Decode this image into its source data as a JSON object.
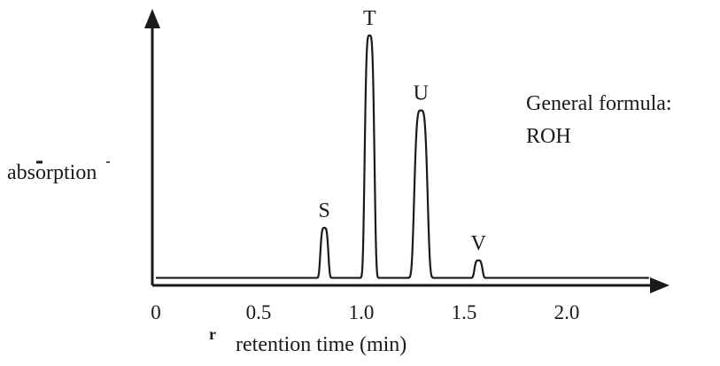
{
  "chart_data": {
    "type": "line",
    "title": "",
    "xlabel": "retention time (min)",
    "ylabel": "absorption",
    "xlim": [
      0,
      2.4
    ],
    "xticks": [
      {
        "value": 0,
        "label": "0"
      },
      {
        "value": 0.5,
        "label": "0.5"
      },
      {
        "value": 1.0,
        "label": "1.0"
      },
      {
        "value": 1.5,
        "label": "1.5"
      },
      {
        "value": 2.0,
        "label": "2.0"
      }
    ],
    "y_axis_ticks": false,
    "grid": false,
    "legend": "none",
    "baseline_absorption": 0.03,
    "peaks": [
      {
        "label": "S",
        "retention_time": 0.82,
        "absorption": 0.23,
        "width": 0.018
      },
      {
        "label": "T",
        "retention_time": 1.04,
        "absorption": 1.0,
        "width": 0.022
      },
      {
        "label": "U",
        "retention_time": 1.29,
        "absorption": 0.7,
        "width": 0.03
      },
      {
        "label": "V",
        "retention_time": 1.57,
        "absorption": 0.1,
        "width": 0.018
      }
    ],
    "annotations": [
      {
        "text": "General formula:"
      },
      {
        "text": "ROH"
      }
    ],
    "stray_mark": "r",
    "line_color": "#1a1a1a"
  }
}
